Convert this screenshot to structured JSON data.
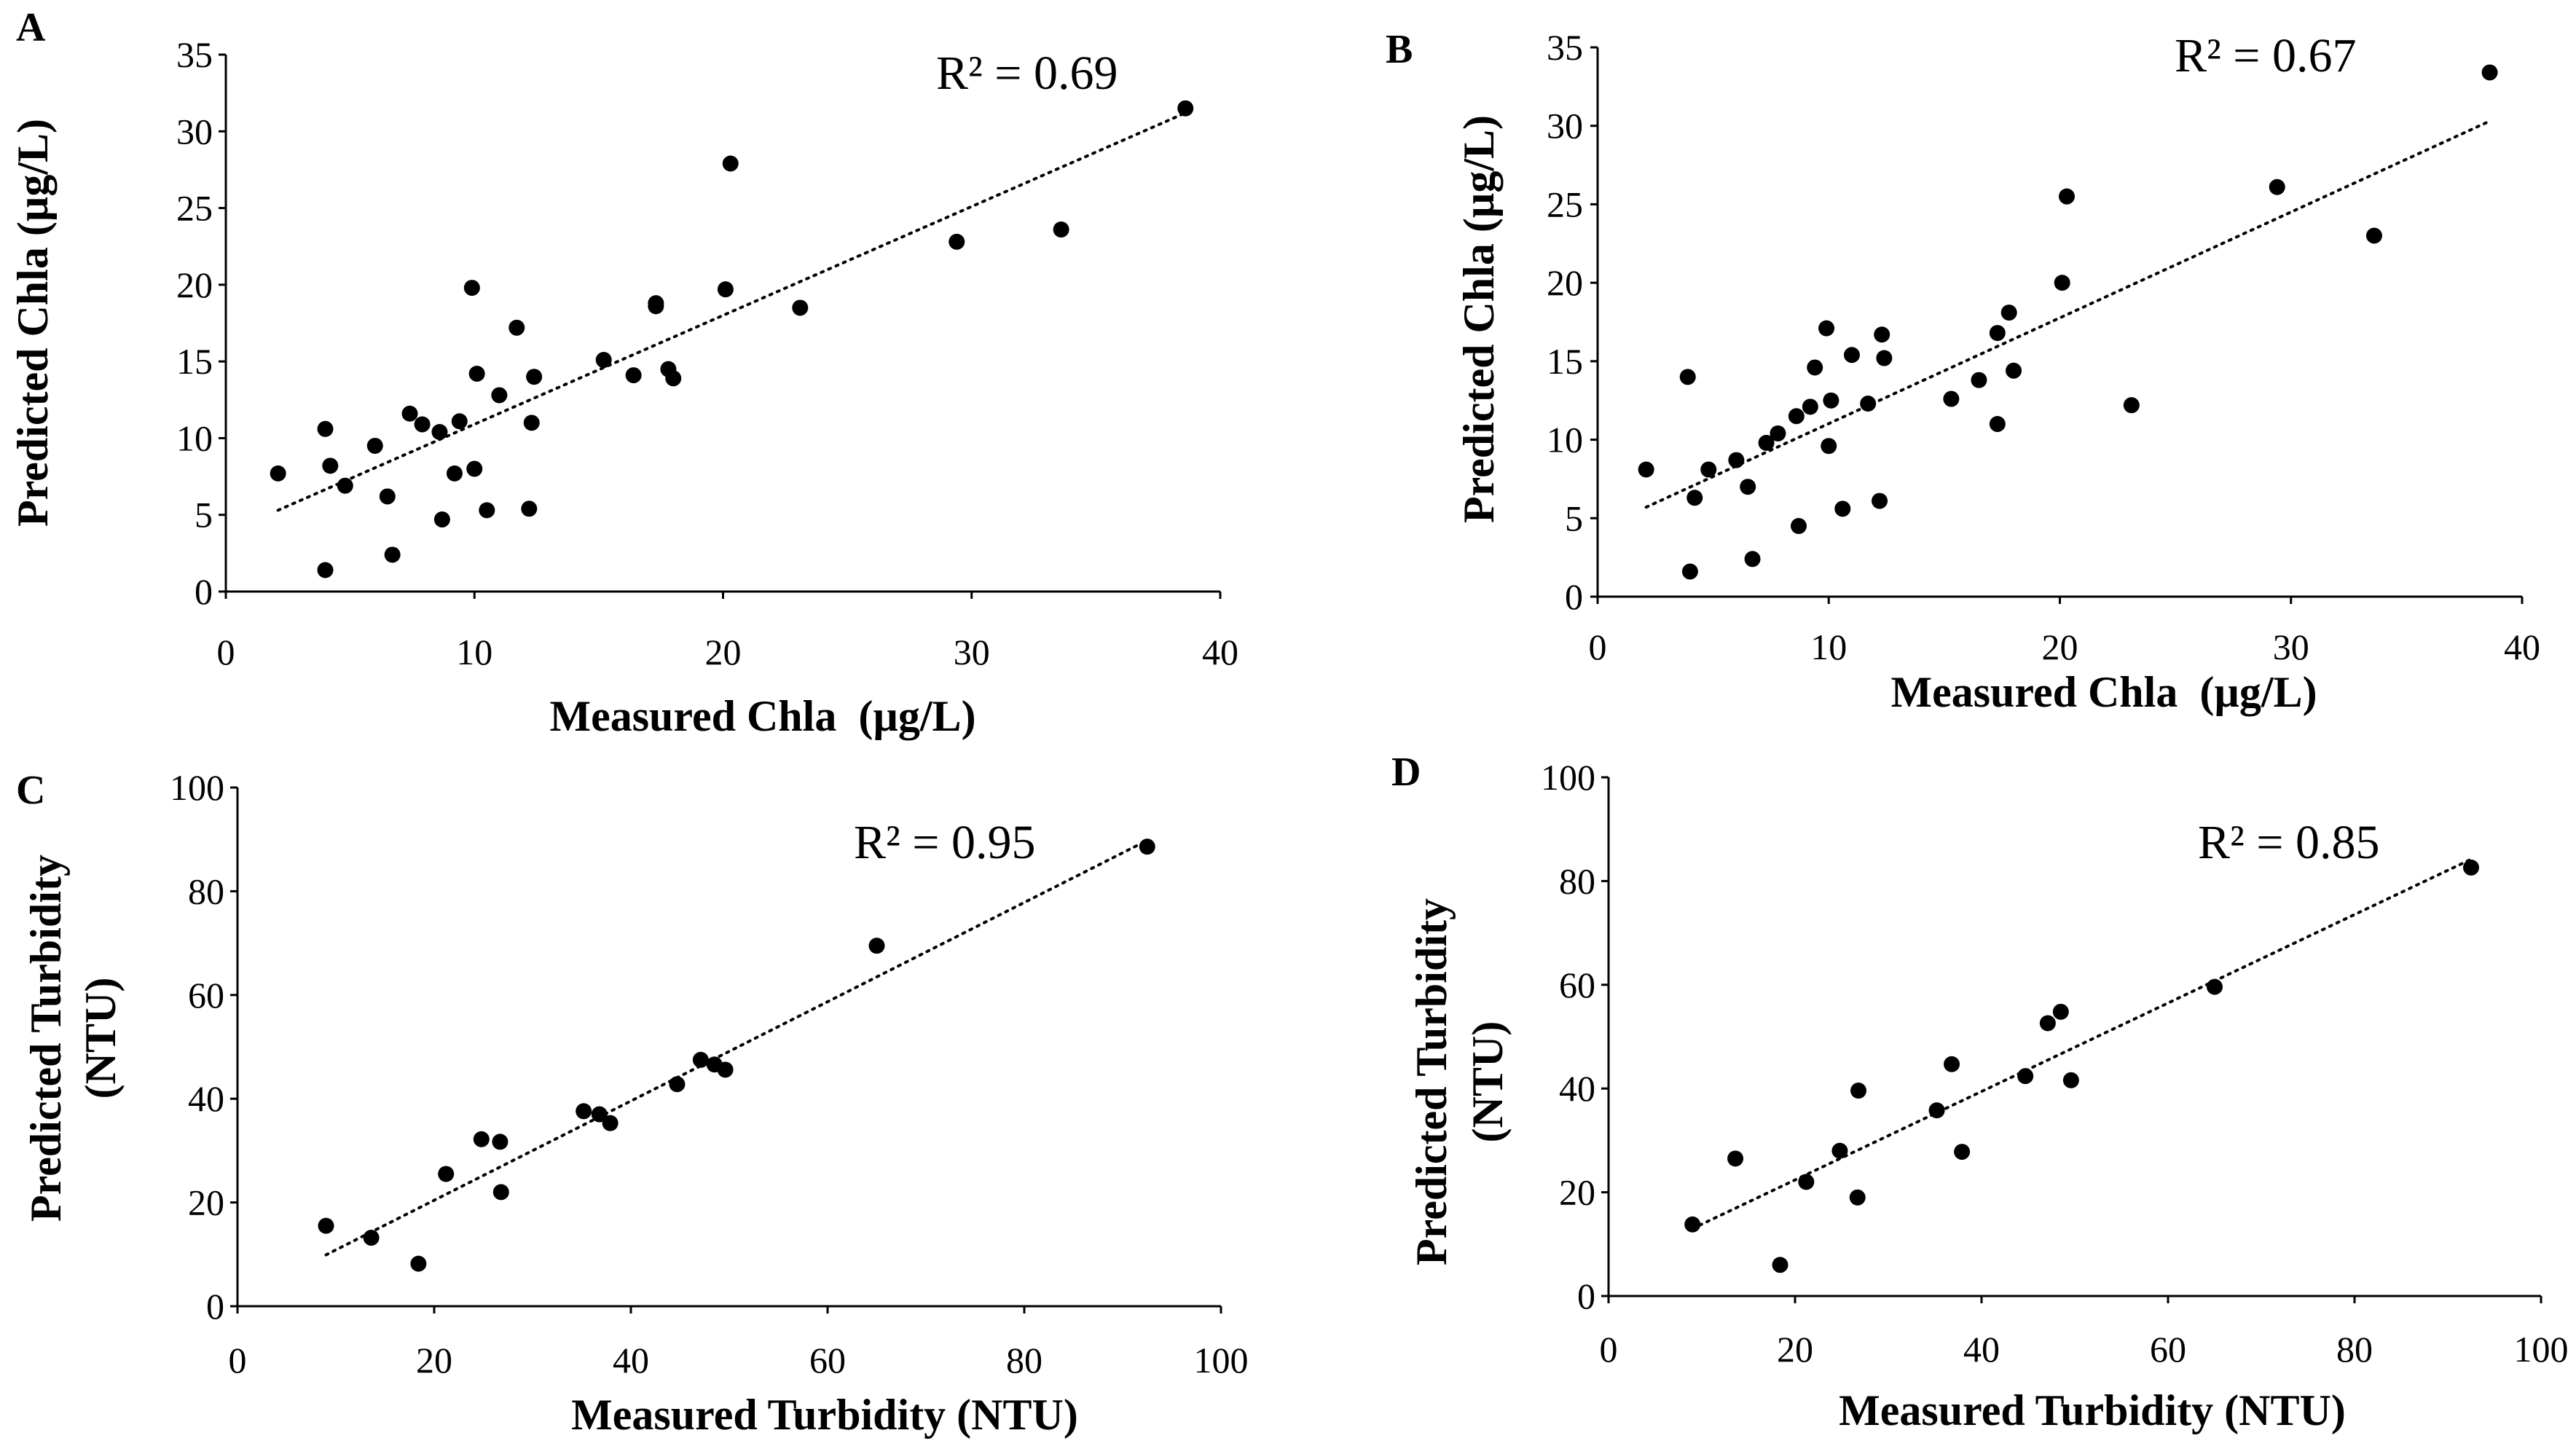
{
  "chart_data": [
    {
      "panel": "A",
      "type": "scatter",
      "xlabel": "Measured Chla  (µg/L)",
      "ylabel": "Predicted Chla (µg/L)",
      "xlim": [
        0,
        40
      ],
      "ylim": [
        0,
        35
      ],
      "xticks": [
        0,
        10,
        20,
        30,
        40
      ],
      "yticks": [
        0,
        5,
        10,
        15,
        20,
        25,
        30,
        35
      ],
      "r2_label": "R² = 0.69",
      "trendline": {
        "x": [
          2.1,
          38.6
        ],
        "y": [
          5.3,
          31.2
        ]
      },
      "points": [
        {
          "x": 2.1,
          "y": 7.7
        },
        {
          "x": 4.0,
          "y": 10.6
        },
        {
          "x": 4.0,
          "y": 1.4
        },
        {
          "x": 4.2,
          "y": 8.2
        },
        {
          "x": 4.8,
          "y": 6.9
        },
        {
          "x": 6.0,
          "y": 9.5
        },
        {
          "x": 6.5,
          "y": 6.2
        },
        {
          "x": 6.7,
          "y": 2.4
        },
        {
          "x": 7.4,
          "y": 11.6
        },
        {
          "x": 7.9,
          "y": 10.9
        },
        {
          "x": 8.6,
          "y": 10.4
        },
        {
          "x": 8.7,
          "y": 4.7
        },
        {
          "x": 9.2,
          "y": 7.7
        },
        {
          "x": 9.4,
          "y": 11.1
        },
        {
          "x": 9.9,
          "y": 19.8
        },
        {
          "x": 10.0,
          "y": 8.0
        },
        {
          "x": 10.1,
          "y": 14.2
        },
        {
          "x": 10.5,
          "y": 5.3
        },
        {
          "x": 11.0,
          "y": 12.8
        },
        {
          "x": 11.7,
          "y": 17.2
        },
        {
          "x": 12.2,
          "y": 5.4
        },
        {
          "x": 12.3,
          "y": 11.0
        },
        {
          "x": 12.4,
          "y": 14.0
        },
        {
          "x": 15.2,
          "y": 15.1
        },
        {
          "x": 16.4,
          "y": 14.1
        },
        {
          "x": 17.3,
          "y": 18.8
        },
        {
          "x": 17.3,
          "y": 18.6
        },
        {
          "x": 17.8,
          "y": 14.5
        },
        {
          "x": 18.0,
          "y": 13.9
        },
        {
          "x": 20.1,
          "y": 19.7
        },
        {
          "x": 20.3,
          "y": 27.9
        },
        {
          "x": 23.1,
          "y": 18.5
        },
        {
          "x": 29.4,
          "y": 22.8
        },
        {
          "x": 33.6,
          "y": 23.6
        },
        {
          "x": 38.6,
          "y": 31.5
        }
      ]
    },
    {
      "panel": "B",
      "type": "scatter",
      "xlabel": "Measured Chla  (µg/L)",
      "ylabel": "Predicted Chla (µg/L)",
      "xlim": [
        0,
        40
      ],
      "ylim": [
        0,
        35
      ],
      "xticks": [
        0,
        10,
        20,
        30,
        40
      ],
      "yticks": [
        0,
        5,
        10,
        15,
        20,
        25,
        30,
        35
      ],
      "r2_label": "R² = 0.67",
      "trendline": {
        "x": [
          2.1,
          38.6
        ],
        "y": [
          5.7,
          30.3
        ]
      },
      "points": [
        {
          "x": 2.1,
          "y": 8.1
        },
        {
          "x": 3.9,
          "y": 14.0
        },
        {
          "x": 4.0,
          "y": 1.6
        },
        {
          "x": 4.2,
          "y": 6.3
        },
        {
          "x": 4.8,
          "y": 8.1
        },
        {
          "x": 6.0,
          "y": 8.7
        },
        {
          "x": 6.5,
          "y": 7.0
        },
        {
          "x": 6.7,
          "y": 2.4
        },
        {
          "x": 7.3,
          "y": 9.8
        },
        {
          "x": 7.8,
          "y": 10.4
        },
        {
          "x": 8.6,
          "y": 11.5
        },
        {
          "x": 8.7,
          "y": 4.5
        },
        {
          "x": 9.2,
          "y": 12.1
        },
        {
          "x": 9.4,
          "y": 14.6
        },
        {
          "x": 9.9,
          "y": 17.1
        },
        {
          "x": 10.0,
          "y": 9.6
        },
        {
          "x": 10.1,
          "y": 12.5
        },
        {
          "x": 10.6,
          "y": 5.6
        },
        {
          "x": 11.0,
          "y": 15.4
        },
        {
          "x": 11.7,
          "y": 12.3
        },
        {
          "x": 12.2,
          "y": 6.1
        },
        {
          "x": 12.3,
          "y": 16.7
        },
        {
          "x": 12.4,
          "y": 15.2
        },
        {
          "x": 15.3,
          "y": 12.6
        },
        {
          "x": 16.5,
          "y": 13.8
        },
        {
          "x": 17.3,
          "y": 16.8
        },
        {
          "x": 17.3,
          "y": 11.0
        },
        {
          "x": 17.8,
          "y": 18.1
        },
        {
          "x": 18.0,
          "y": 14.4
        },
        {
          "x": 20.1,
          "y": 20.0
        },
        {
          "x": 20.3,
          "y": 25.5
        },
        {
          "x": 23.1,
          "y": 12.2
        },
        {
          "x": 29.4,
          "y": 26.1
        },
        {
          "x": 33.6,
          "y": 23.0
        },
        {
          "x": 38.6,
          "y": 33.4
        }
      ]
    },
    {
      "panel": "C",
      "type": "scatter",
      "xlabel": "Measured Turbidity (NTU)",
      "ylabel_lines": [
        "Predicted Turbidity",
        "(NTU)"
      ],
      "xlim": [
        0,
        100
      ],
      "ylim": [
        0,
        100
      ],
      "xticks": [
        0,
        20,
        40,
        60,
        80,
        100
      ],
      "yticks": [
        0,
        20,
        40,
        60,
        80,
        100
      ],
      "r2_label": "R² = 0.95",
      "trendline": {
        "x": [
          9.0,
          92.5
        ],
        "y": [
          9.9,
          89.8
        ]
      },
      "points": [
        {
          "x": 9.0,
          "y": 15.5
        },
        {
          "x": 13.6,
          "y": 13.2
        },
        {
          "x": 18.4,
          "y": 8.2
        },
        {
          "x": 21.2,
          "y": 25.5
        },
        {
          "x": 24.8,
          "y": 32.2
        },
        {
          "x": 26.7,
          "y": 31.7
        },
        {
          "x": 26.8,
          "y": 22.0
        },
        {
          "x": 35.2,
          "y": 37.6
        },
        {
          "x": 36.8,
          "y": 37.0
        },
        {
          "x": 37.9,
          "y": 35.3
        },
        {
          "x": 44.7,
          "y": 42.8
        },
        {
          "x": 47.1,
          "y": 47.5
        },
        {
          "x": 48.5,
          "y": 46.6
        },
        {
          "x": 49.6,
          "y": 45.6
        },
        {
          "x": 65.0,
          "y": 69.5
        },
        {
          "x": 92.5,
          "y": 88.6
        }
      ]
    },
    {
      "panel": "D",
      "type": "scatter",
      "xlabel": "Measured Turbidity (NTU)",
      "ylabel_lines": [
        "Predicted Turbidity",
        "(NTU)"
      ],
      "xlim": [
        0,
        100
      ],
      "ylim": [
        0,
        100
      ],
      "xticks": [
        0,
        20,
        40,
        60,
        80,
        100
      ],
      "yticks": [
        0,
        20,
        40,
        60,
        80,
        100
      ],
      "r2_label": "R² = 0.85",
      "trendline": {
        "x": [
          9.0,
          92.5
        ],
        "y": [
          13.0,
          84.2
        ]
      },
      "points": [
        {
          "x": 9.0,
          "y": 13.8
        },
        {
          "x": 13.6,
          "y": 26.5
        },
        {
          "x": 18.4,
          "y": 6.0
        },
        {
          "x": 21.2,
          "y": 22.0
        },
        {
          "x": 24.8,
          "y": 28.0
        },
        {
          "x": 26.7,
          "y": 19.0
        },
        {
          "x": 26.8,
          "y": 39.6
        },
        {
          "x": 35.2,
          "y": 35.8
        },
        {
          "x": 36.8,
          "y": 44.7
        },
        {
          "x": 37.9,
          "y": 27.8
        },
        {
          "x": 44.7,
          "y": 42.4
        },
        {
          "x": 47.1,
          "y": 52.6
        },
        {
          "x": 48.5,
          "y": 54.8
        },
        {
          "x": 49.6,
          "y": 41.6
        },
        {
          "x": 65.0,
          "y": 59.6
        },
        {
          "x": 92.5,
          "y": 82.6
        }
      ]
    }
  ]
}
